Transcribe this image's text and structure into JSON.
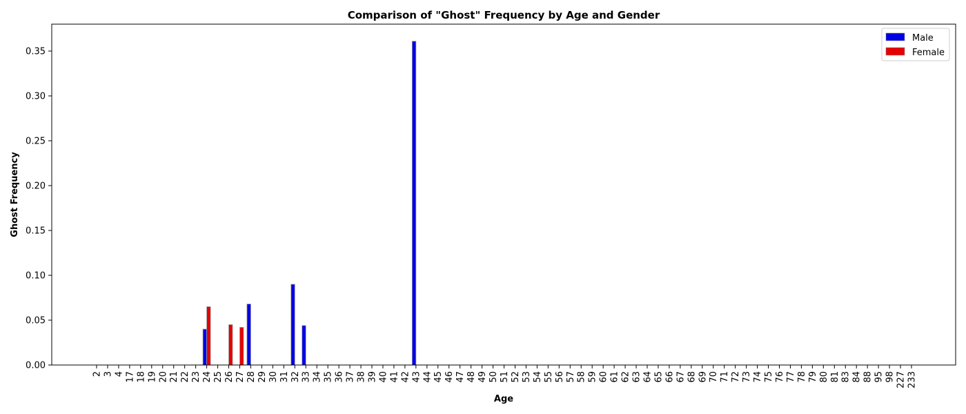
{
  "chart_data": {
    "type": "bar",
    "title": "Comparison of \"Ghost\" Frequency by Age and Gender",
    "xlabel": "Age",
    "ylabel": "Ghost Frequency",
    "ylim": [
      0,
      0.38
    ],
    "yticks": [
      "0.00",
      "0.05",
      "0.10",
      "0.15",
      "0.20",
      "0.25",
      "0.30",
      "0.35"
    ],
    "categories": [
      "2",
      "3",
      "4",
      "17",
      "18",
      "19",
      "20",
      "21",
      "22",
      "23",
      "24",
      "25",
      "26",
      "27",
      "28",
      "29",
      "30",
      "31",
      "32",
      "33",
      "34",
      "35",
      "36",
      "37",
      "38",
      "39",
      "40",
      "41",
      "42",
      "43",
      "44",
      "45",
      "46",
      "47",
      "48",
      "49",
      "50",
      "51",
      "52",
      "53",
      "54",
      "55",
      "56",
      "57",
      "58",
      "59",
      "60",
      "61",
      "62",
      "63",
      "64",
      "65",
      "66",
      "67",
      "68",
      "69",
      "70",
      "71",
      "72",
      "73",
      "74",
      "75",
      "76",
      "77",
      "78",
      "79",
      "80",
      "81",
      "83",
      "84",
      "88",
      "95",
      "98",
      "227",
      "233"
    ],
    "series": [
      {
        "name": "Male",
        "color": "#0000e6",
        "values": [
          0,
          0,
          0,
          0,
          0,
          0,
          0,
          0,
          0,
          0,
          0.04,
          0,
          0,
          0,
          0.068,
          0,
          0,
          0,
          0.09,
          0.044,
          0,
          0,
          0,
          0,
          0,
          0,
          0,
          0,
          0,
          0.361,
          0,
          0,
          0,
          0,
          0,
          0,
          0,
          0,
          0,
          0,
          0,
          0,
          0,
          0,
          0,
          0,
          0,
          0,
          0,
          0,
          0,
          0,
          0,
          0,
          0,
          0,
          0,
          0,
          0,
          0,
          0,
          0,
          0,
          0,
          0,
          0,
          0,
          0,
          0,
          0,
          0,
          0,
          0,
          0,
          0
        ]
      },
      {
        "name": "Female",
        "color": "#e60000",
        "values": [
          0,
          0,
          0,
          0,
          0,
          0,
          0,
          0,
          0,
          0,
          0.065,
          0,
          0.045,
          0.042,
          0,
          0,
          0,
          0,
          0,
          0,
          0,
          0,
          0,
          0,
          0,
          0,
          0,
          0,
          0,
          0,
          0,
          0,
          0,
          0,
          0,
          0,
          0,
          0,
          0,
          0,
          0,
          0,
          0,
          0,
          0,
          0,
          0,
          0,
          0,
          0,
          0,
          0,
          0,
          0,
          0,
          0,
          0,
          0,
          0,
          0,
          0,
          0,
          0,
          0,
          0,
          0,
          0,
          0,
          0,
          0,
          0,
          0,
          0,
          0,
          0
        ]
      }
    ],
    "grid": false,
    "legend_position": "top-right"
  }
}
